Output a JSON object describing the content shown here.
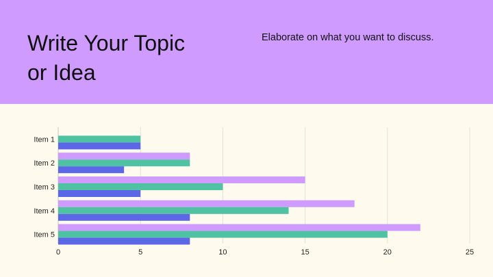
{
  "slide": {
    "title": "Write Your Topic\nor Idea",
    "subtitle": "Elaborate on what you want to discuss."
  },
  "colors": {
    "header_bg": "#cf9bff",
    "page_bg": "#fefbee",
    "series_purple": "#cf9bff",
    "series_green": "#4fc2a3",
    "series_blue": "#5b67e6",
    "grid": "#e4e1d6"
  },
  "chart_data": {
    "type": "bar",
    "orientation": "horizontal",
    "categories": [
      "Item 1",
      "Item 2",
      "Item 3",
      "Item 4",
      "Item 5"
    ],
    "series": [
      {
        "color": "#cf9bff",
        "values": [
          0,
          8,
          15,
          18,
          22
        ]
      },
      {
        "color": "#4fc2a3",
        "values": [
          5,
          8,
          10,
          14,
          20
        ]
      },
      {
        "color": "#5b67e6",
        "values": [
          5,
          4,
          5,
          8,
          8
        ]
      }
    ],
    "xlim": [
      0,
      25
    ],
    "xticks": [
      0,
      5,
      10,
      15,
      20,
      25
    ],
    "grid": true,
    "legend": "none",
    "title": "",
    "xlabel": "",
    "ylabel": ""
  }
}
